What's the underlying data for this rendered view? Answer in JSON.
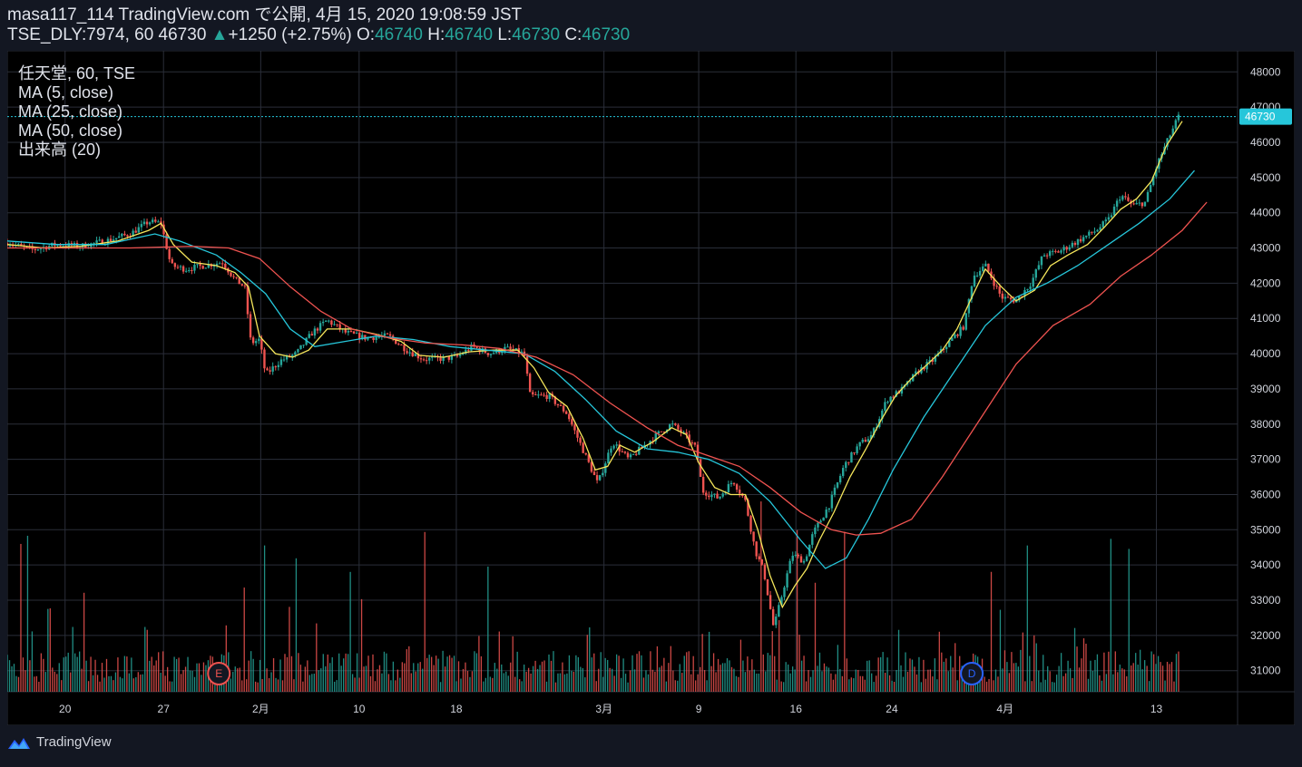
{
  "header": {
    "publish_line": "masa117_114 TradingView.com で公開, 4月 15, 2020 19:08:59 JST",
    "symbol_line": "TSE_DLY:7974, 60",
    "last_price": "46730",
    "change": "+1250 (+2.75%)",
    "o_label": "O:",
    "o_value": "46740",
    "h_label": "H:",
    "h_value": "46740",
    "l_label": "L:",
    "l_value": "46730",
    "c_label": "C:",
    "c_value": "46730"
  },
  "legend": {
    "symbol": "任天堂, 60, TSE",
    "ma5": "MA (5, close)",
    "ma25": "MA (25, close)",
    "ma50": "MA (50, close)",
    "volume": "出来高 (20)"
  },
  "price_badge": "46730",
  "event_markers": [
    {
      "letter": "E",
      "color": "#ef5350"
    },
    {
      "letter": "D",
      "color": "#2962ff"
    }
  ],
  "footer": {
    "brand": "TradingView"
  },
  "colors": {
    "background": "#131722",
    "grid": "#2a2e39",
    "up": "#26a69a",
    "down": "#ef5350",
    "ma5": "#f5e65b",
    "ma25": "#26c6da",
    "ma50": "#ef5350",
    "last_price": "#26c6da"
  },
  "chart_data": {
    "type": "line",
    "title": "任天堂, 60, TSE",
    "y_ticks": [
      31000,
      32000,
      33000,
      34000,
      35000,
      36000,
      37000,
      38000,
      39000,
      40000,
      41000,
      42000,
      43000,
      44000,
      45000,
      46000,
      47000,
      48000
    ],
    "ylim": [
      30400,
      48600
    ],
    "x_ticks": [
      {
        "label": "20",
        "pos": 0.047
      },
      {
        "label": "27",
        "pos": 0.127
      },
      {
        "label": "2月",
        "pos": 0.206
      },
      {
        "label": "10",
        "pos": 0.286
      },
      {
        "label": "18",
        "pos": 0.365
      },
      {
        "label": "3月",
        "pos": 0.485
      },
      {
        "label": "9",
        "pos": 0.562
      },
      {
        "label": "16",
        "pos": 0.641
      },
      {
        "label": "24",
        "pos": 0.719
      },
      {
        "label": "4月",
        "pos": 0.811
      },
      {
        "label": "13",
        "pos": 0.934
      }
    ],
    "price_path": [
      [
        0.0,
        43150
      ],
      [
        0.02,
        42950
      ],
      [
        0.04,
        43100
      ],
      [
        0.06,
        43050
      ],
      [
        0.08,
        43200
      ],
      [
        0.1,
        43400
      ],
      [
        0.115,
        43750
      ],
      [
        0.125,
        43700
      ],
      [
        0.133,
        42500
      ],
      [
        0.145,
        42400
      ],
      [
        0.16,
        42500
      ],
      [
        0.175,
        42600
      ],
      [
        0.185,
        42100
      ],
      [
        0.193,
        41900
      ],
      [
        0.198,
        40300
      ],
      [
        0.205,
        40400
      ],
      [
        0.21,
        39400
      ],
      [
        0.222,
        39800
      ],
      [
        0.235,
        40000
      ],
      [
        0.248,
        40600
      ],
      [
        0.26,
        40950
      ],
      [
        0.275,
        40600
      ],
      [
        0.29,
        40450
      ],
      [
        0.31,
        40500
      ],
      [
        0.325,
        40100
      ],
      [
        0.338,
        39850
      ],
      [
        0.35,
        39850
      ],
      [
        0.365,
        39900
      ],
      [
        0.378,
        40200
      ],
      [
        0.392,
        40000
      ],
      [
        0.405,
        40150
      ],
      [
        0.42,
        40000
      ],
      [
        0.425,
        38800
      ],
      [
        0.44,
        38800
      ],
      [
        0.455,
        38300
      ],
      [
        0.47,
        37100
      ],
      [
        0.48,
        36300
      ],
      [
        0.492,
        37500
      ],
      [
        0.505,
        37000
      ],
      [
        0.518,
        37400
      ],
      [
        0.53,
        37750
      ],
      [
        0.54,
        38000
      ],
      [
        0.55,
        37700
      ],
      [
        0.56,
        37300
      ],
      [
        0.565,
        36100
      ],
      [
        0.578,
        35900
      ],
      [
        0.59,
        36400
      ],
      [
        0.6,
        35800
      ],
      [
        0.608,
        34400
      ],
      [
        0.615,
        33800
      ],
      [
        0.623,
        32200
      ],
      [
        0.63,
        33200
      ],
      [
        0.638,
        34300
      ],
      [
        0.648,
        34100
      ],
      [
        0.655,
        34900
      ],
      [
        0.668,
        35700
      ],
      [
        0.68,
        36800
      ],
      [
        0.692,
        37400
      ],
      [
        0.703,
        37700
      ],
      [
        0.715,
        38700
      ],
      [
        0.728,
        39000
      ],
      [
        0.74,
        39500
      ],
      [
        0.752,
        39800
      ],
      [
        0.765,
        40300
      ],
      [
        0.778,
        40800
      ],
      [
        0.785,
        42200
      ],
      [
        0.795,
        42500
      ],
      [
        0.808,
        41600
      ],
      [
        0.82,
        41500
      ],
      [
        0.832,
        42000
      ],
      [
        0.842,
        42800
      ],
      [
        0.855,
        42900
      ],
      [
        0.87,
        43200
      ],
      [
        0.885,
        43500
      ],
      [
        0.895,
        43800
      ],
      [
        0.905,
        44500
      ],
      [
        0.915,
        44200
      ],
      [
        0.925,
        44300
      ],
      [
        0.935,
        45400
      ],
      [
        0.945,
        46200
      ],
      [
        0.952,
        46730
      ]
    ],
    "series": [
      {
        "name": "MA (5, close)",
        "color": "#f5e65b",
        "points": [
          [
            0.0,
            43100
          ],
          [
            0.03,
            43000
          ],
          [
            0.06,
            43050
          ],
          [
            0.09,
            43200
          ],
          [
            0.115,
            43500
          ],
          [
            0.125,
            43700
          ],
          [
            0.135,
            43100
          ],
          [
            0.15,
            42600
          ],
          [
            0.17,
            42500
          ],
          [
            0.185,
            42300
          ],
          [
            0.196,
            41900
          ],
          [
            0.205,
            40500
          ],
          [
            0.218,
            40000
          ],
          [
            0.232,
            39900
          ],
          [
            0.245,
            40100
          ],
          [
            0.26,
            40700
          ],
          [
            0.28,
            40700
          ],
          [
            0.3,
            40550
          ],
          [
            0.32,
            40350
          ],
          [
            0.335,
            39950
          ],
          [
            0.355,
            39900
          ],
          [
            0.375,
            40050
          ],
          [
            0.395,
            40100
          ],
          [
            0.415,
            40100
          ],
          [
            0.428,
            39600
          ],
          [
            0.44,
            38900
          ],
          [
            0.455,
            38500
          ],
          [
            0.468,
            37600
          ],
          [
            0.478,
            36700
          ],
          [
            0.488,
            36800
          ],
          [
            0.498,
            37400
          ],
          [
            0.51,
            37200
          ],
          [
            0.525,
            37500
          ],
          [
            0.54,
            37900
          ],
          [
            0.552,
            37700
          ],
          [
            0.562,
            36900
          ],
          [
            0.575,
            36200
          ],
          [
            0.588,
            36000
          ],
          [
            0.6,
            36000
          ],
          [
            0.61,
            35000
          ],
          [
            0.62,
            33700
          ],
          [
            0.63,
            32800
          ],
          [
            0.64,
            33400
          ],
          [
            0.65,
            33900
          ],
          [
            0.66,
            34700
          ],
          [
            0.672,
            35500
          ],
          [
            0.685,
            36500
          ],
          [
            0.698,
            37300
          ],
          [
            0.71,
            38100
          ],
          [
            0.722,
            38800
          ],
          [
            0.735,
            39300
          ],
          [
            0.748,
            39700
          ],
          [
            0.76,
            40100
          ],
          [
            0.772,
            40700
          ],
          [
            0.784,
            41600
          ],
          [
            0.795,
            42400
          ],
          [
            0.808,
            41900
          ],
          [
            0.82,
            41500
          ],
          [
            0.835,
            41800
          ],
          [
            0.848,
            42500
          ],
          [
            0.862,
            42800
          ],
          [
            0.878,
            43100
          ],
          [
            0.892,
            43600
          ],
          [
            0.905,
            44100
          ],
          [
            0.918,
            44400
          ],
          [
            0.93,
            44900
          ],
          [
            0.942,
            45900
          ],
          [
            0.955,
            46600
          ]
        ]
      },
      {
        "name": "MA (25, close)",
        "color": "#26c6da",
        "points": [
          [
            0.0,
            43200
          ],
          [
            0.04,
            43100
          ],
          [
            0.08,
            43100
          ],
          [
            0.12,
            43400
          ],
          [
            0.14,
            43200
          ],
          [
            0.17,
            42800
          ],
          [
            0.19,
            42300
          ],
          [
            0.21,
            41700
          ],
          [
            0.23,
            40700
          ],
          [
            0.25,
            40200
          ],
          [
            0.275,
            40350
          ],
          [
            0.3,
            40500
          ],
          [
            0.33,
            40400
          ],
          [
            0.36,
            40200
          ],
          [
            0.39,
            40100
          ],
          [
            0.42,
            40000
          ],
          [
            0.445,
            39500
          ],
          [
            0.47,
            38700
          ],
          [
            0.495,
            37800
          ],
          [
            0.52,
            37300
          ],
          [
            0.545,
            37200
          ],
          [
            0.57,
            37000
          ],
          [
            0.595,
            36600
          ],
          [
            0.62,
            35800
          ],
          [
            0.645,
            34700
          ],
          [
            0.665,
            33900
          ],
          [
            0.682,
            34200
          ],
          [
            0.7,
            35300
          ],
          [
            0.72,
            36700
          ],
          [
            0.745,
            38200
          ],
          [
            0.77,
            39500
          ],
          [
            0.795,
            40800
          ],
          [
            0.82,
            41600
          ],
          [
            0.845,
            42000
          ],
          [
            0.87,
            42500
          ],
          [
            0.895,
            43100
          ],
          [
            0.92,
            43700
          ],
          [
            0.945,
            44400
          ],
          [
            0.965,
            45200
          ]
        ]
      },
      {
        "name": "MA (50, close)",
        "color": "#ef5350",
        "points": [
          [
            0.0,
            43000
          ],
          [
            0.05,
            43000
          ],
          [
            0.1,
            43000
          ],
          [
            0.15,
            43050
          ],
          [
            0.18,
            43000
          ],
          [
            0.205,
            42700
          ],
          [
            0.23,
            41900
          ],
          [
            0.255,
            41200
          ],
          [
            0.28,
            40700
          ],
          [
            0.31,
            40450
          ],
          [
            0.34,
            40300
          ],
          [
            0.37,
            40250
          ],
          [
            0.4,
            40150
          ],
          [
            0.43,
            39900
          ],
          [
            0.46,
            39400
          ],
          [
            0.49,
            38600
          ],
          [
            0.52,
            37900
          ],
          [
            0.545,
            37400
          ],
          [
            0.57,
            37100
          ],
          [
            0.595,
            36800
          ],
          [
            0.62,
            36200
          ],
          [
            0.645,
            35500
          ],
          [
            0.67,
            35000
          ],
          [
            0.69,
            34850
          ],
          [
            0.71,
            34900
          ],
          [
            0.735,
            35300
          ],
          [
            0.76,
            36500
          ],
          [
            0.79,
            38100
          ],
          [
            0.82,
            39700
          ],
          [
            0.85,
            40800
          ],
          [
            0.88,
            41400
          ],
          [
            0.905,
            42200
          ],
          [
            0.93,
            42800
          ],
          [
            0.955,
            43500
          ],
          [
            0.975,
            44300
          ]
        ]
      }
    ]
  }
}
